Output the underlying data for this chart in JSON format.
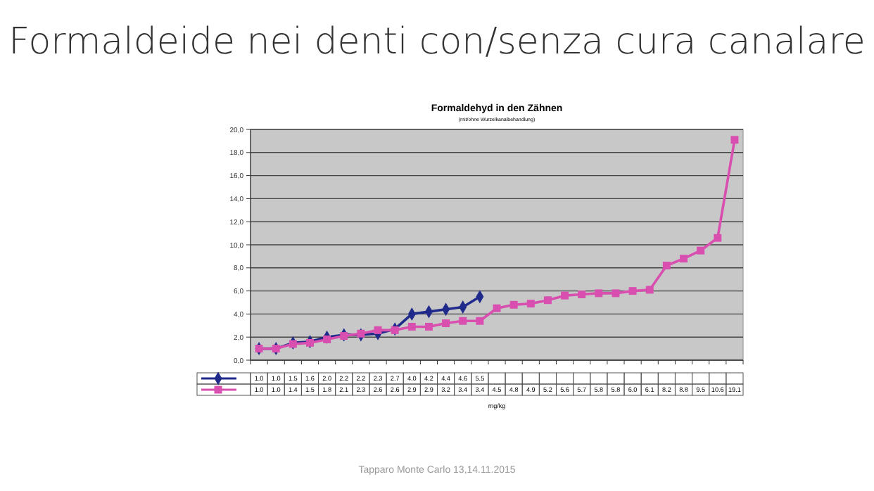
{
  "chart_data": {
    "type": "line",
    "title": "Formaldehyd in den Zähnen",
    "subtitle": "(mit/ohne Wurzelkanalbehandlung)",
    "annotations": [
      "Formaldeide nei denti con/senza cura canalare",
      "Tapparo Monte Carlo 13,14.11.2015",
      "mg/kg"
    ],
    "categories": [
      null,
      null,
      null,
      null,
      null,
      null,
      null,
      null,
      null,
      null,
      null,
      null,
      null,
      null,
      null,
      null,
      null,
      null,
      null,
      null,
      null,
      null,
      null,
      null,
      null,
      null,
      null,
      null,
      null
    ],
    "series": [
      {
        "color": "#1f2a8a",
        "marker": "diamond",
        "values": [
          1.0,
          1.0,
          1.5,
          1.6,
          2.0,
          2.2,
          2.2,
          2.3,
          2.7,
          4.0,
          4.2,
          4.4,
          4.6,
          5.5,
          null,
          null,
          null,
          null,
          null,
          null,
          null,
          null,
          null,
          null,
          null,
          null,
          null,
          null,
          null
        ],
        "value_labels": [
          "1.0",
          "1.0",
          "1.5",
          "1.6",
          "2.0",
          "2.2",
          "2.2",
          "2.3",
          "2.7",
          "4.0",
          "4.2",
          "4.4",
          "4.6",
          "5.5",
          null,
          null,
          null,
          null,
          null,
          null,
          null,
          null,
          null,
          null,
          null,
          null,
          null,
          null,
          null
        ]
      },
      {
        "color": "#d94fb0",
        "marker": "square",
        "values": [
          1.0,
          1.0,
          1.4,
          1.5,
          1.8,
          2.1,
          2.3,
          2.6,
          2.6,
          2.9,
          2.9,
          3.2,
          3.4,
          3.4,
          4.5,
          4.8,
          4.9,
          5.2,
          5.6,
          5.7,
          5.8,
          5.8,
          6.0,
          6.1,
          8.2,
          8.8,
          9.5,
          10.6,
          19.1
        ],
        "value_labels": [
          "1.0",
          "1.0",
          "1.4",
          "1.5",
          "1.8",
          "2.1",
          "2.3",
          "2.6",
          "2.6",
          "2.9",
          "2.9",
          "3.2",
          "3.4",
          "3.4",
          "4.5",
          "4.8",
          "4.9",
          "5.2",
          "5.6",
          "5.7",
          "5.8",
          "5.8",
          "6.0",
          "6.1",
          "8.2",
          "8.8",
          "9.5",
          "10.6",
          "19.1"
        ]
      }
    ],
    "ylim": [
      0,
      20
    ],
    "yticks": [
      {
        "value": 0,
        "label": "0,0"
      },
      {
        "value": 2,
        "label": "2,0"
      },
      {
        "value": 4,
        "label": "4,0"
      },
      {
        "value": 6,
        "label": "6,0"
      },
      {
        "value": 8,
        "label": "8,0"
      },
      {
        "value": 10,
        "label": "10,0"
      },
      {
        "value": 12,
        "label": "12,0"
      },
      {
        "value": 14,
        "label": "14,0"
      },
      {
        "value": 16,
        "label": "16,0"
      },
      {
        "value": 18,
        "label": "18,0"
      },
      {
        "value": 20,
        "label": "20,0"
      }
    ],
    "grid": "y",
    "line_style": "solid"
  }
}
